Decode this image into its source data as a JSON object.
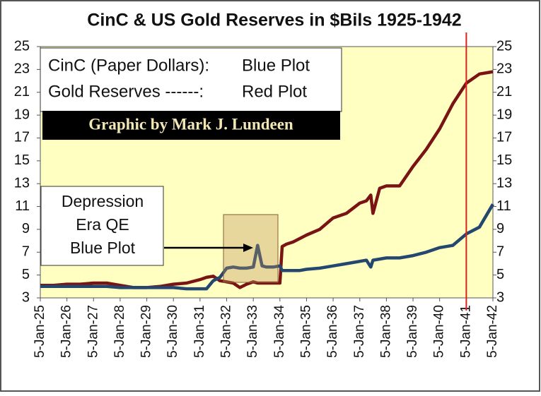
{
  "chart_data": {
    "type": "line",
    "title": "CinC & US Gold Reserves in $Bils 1925-1942",
    "legend": [
      {
        "label": "CinC (Paper Dollars):",
        "note": "Blue Plot"
      },
      {
        "label": "Gold Reserves ------:",
        "note": "Red Plot"
      }
    ],
    "credit": "Graphic by Mark J. Lundeen",
    "annotation": [
      "Depression",
      "Era QE",
      "Blue Plot"
    ],
    "x": [
      "1925-01-05",
      "1925-07-05",
      "1926-01-05",
      "1926-07-05",
      "1927-01-05",
      "1927-07-05",
      "1928-01-05",
      "1928-07-05",
      "1929-01-05",
      "1929-07-05",
      "1930-01-05",
      "1930-07-05",
      "1931-01-05",
      "1931-04-05",
      "1931-07-05",
      "1931-10-05",
      "1932-01-05",
      "1932-04-05",
      "1932-07-05",
      "1932-10-05",
      "1933-01-05",
      "1933-03-05",
      "1933-05-05",
      "1933-07-05",
      "1933-10-05",
      "1934-01-05",
      "1934-02-05",
      "1934-04-05",
      "1934-07-05",
      "1934-10-05",
      "1935-01-05",
      "1935-07-05",
      "1936-01-05",
      "1936-07-05",
      "1937-01-05",
      "1937-04-05",
      "1937-06-05",
      "1937-07-05",
      "1937-10-05",
      "1938-01-05",
      "1938-07-05",
      "1939-01-05",
      "1939-07-05",
      "1940-01-05",
      "1940-07-05",
      "1941-01-05",
      "1941-07-05",
      "1942-01-05"
    ],
    "series": [
      {
        "name": "CinC (Paper Dollars):",
        "color": "#24476f",
        "values": [
          4.0,
          4.0,
          4.0,
          4.0,
          4.0,
          4.0,
          3.9,
          3.9,
          3.9,
          3.9,
          3.9,
          3.8,
          3.8,
          3.8,
          4.5,
          4.8,
          5.6,
          5.7,
          5.6,
          5.6,
          5.7,
          7.6,
          5.8,
          5.7,
          5.7,
          5.8,
          5.4,
          5.4,
          5.4,
          5.4,
          5.5,
          5.6,
          5.8,
          6.0,
          6.2,
          6.3,
          5.7,
          6.3,
          6.4,
          6.5,
          6.5,
          6.7,
          7.0,
          7.4,
          7.6,
          8.6,
          9.2,
          11.2
        ]
      },
      {
        "name": "Gold Reserves ------:",
        "color": "#7a1414",
        "values": [
          4.1,
          4.1,
          4.2,
          4.2,
          4.3,
          4.3,
          4.1,
          3.9,
          3.9,
          4.0,
          4.2,
          4.3,
          4.6,
          4.8,
          4.9,
          4.5,
          4.4,
          4.3,
          3.9,
          4.2,
          4.4,
          4.3,
          4.3,
          4.3,
          4.3,
          4.3,
          7.5,
          7.7,
          7.9,
          8.2,
          8.5,
          9.0,
          10.0,
          10.4,
          11.3,
          11.5,
          12.0,
          10.4,
          12.6,
          12.8,
          12.8,
          14.5,
          16.0,
          17.8,
          20.0,
          21.8,
          22.6,
          22.8
        ]
      }
    ],
    "xlim": [
      "1925-01-05",
      "1942-01-05"
    ],
    "xticks": [
      {
        "value": "1925-01-05",
        "label": "5-Jan-25"
      },
      {
        "value": "1926-01-05",
        "label": "5-Jan-26"
      },
      {
        "value": "1927-01-05",
        "label": "5-Jan-27"
      },
      {
        "value": "1928-01-05",
        "label": "5-Jan-28"
      },
      {
        "value": "1929-01-05",
        "label": "5-Jan-29"
      },
      {
        "value": "1930-01-05",
        "label": "5-Jan-30"
      },
      {
        "value": "1931-01-05",
        "label": "5-Jan-31"
      },
      {
        "value": "1932-01-05",
        "label": "5-Jan-32"
      },
      {
        "value": "1933-01-05",
        "label": "5-Jan-33"
      },
      {
        "value": "1934-01-05",
        "label": "5-Jan-34"
      },
      {
        "value": "1935-01-05",
        "label": "5-Jan-35"
      },
      {
        "value": "1936-01-05",
        "label": "5-Jan-36"
      },
      {
        "value": "1937-01-05",
        "label": "5-Jan-37"
      },
      {
        "value": "1938-01-05",
        "label": "5-Jan-38"
      },
      {
        "value": "1939-01-05",
        "label": "5-Jan-39"
      },
      {
        "value": "1940-01-05",
        "label": "5-Jan-40"
      },
      {
        "value": "1941-01-05",
        "label": "5-Jan-41"
      },
      {
        "value": "1942-01-05",
        "label": "5-Jan-42"
      }
    ],
    "ylim": [
      3,
      25
    ],
    "yticks": [
      3,
      5,
      7,
      9,
      11,
      13,
      15,
      17,
      19,
      21,
      23,
      25
    ],
    "y2lim": [
      3,
      25
    ],
    "y2ticks": [
      3,
      5,
      7,
      9,
      11,
      13,
      15,
      17,
      19,
      21,
      23,
      25
    ],
    "vline": {
      "x": "1941-01-05",
      "color": "#e0201c"
    },
    "plot_background": "#ffffc2",
    "grid": false
  }
}
